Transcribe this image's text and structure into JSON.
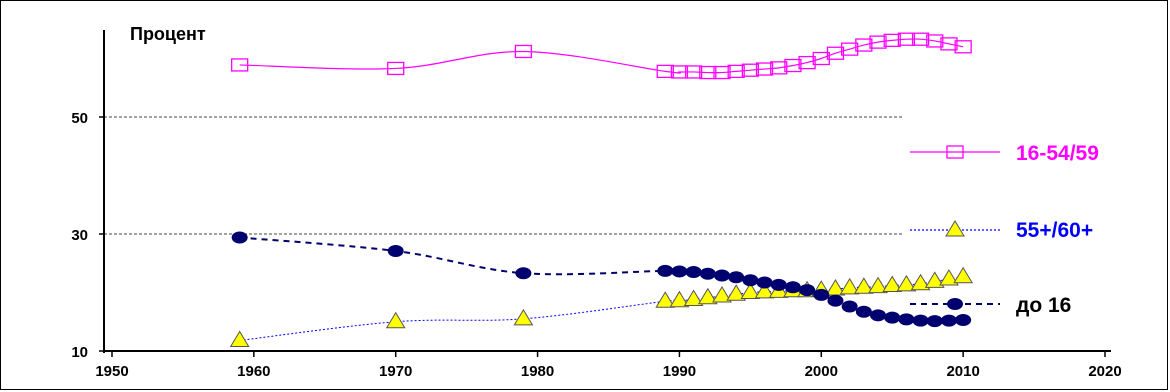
{
  "chart_data": {
    "type": "line",
    "title": "",
    "ylabel": "Процент",
    "xlabel": "",
    "xlim": [
      1950,
      2020
    ],
    "xticks": [
      1950,
      1960,
      1970,
      1980,
      1990,
      2000,
      2010,
      2020
    ],
    "yticks": [
      10,
      30,
      50
    ],
    "grid_y": [
      30,
      50
    ],
    "series": [
      {
        "name": "16-54/59",
        "color": "#ff00ff",
        "marker": "square-hollow",
        "line": "solid",
        "x": [
          1959,
          1970,
          1979,
          1989,
          1990,
          1991,
          1992,
          1993,
          1994,
          1995,
          1996,
          1997,
          1998,
          1999,
          2000,
          2001,
          2002,
          2003,
          2004,
          2005,
          2006,
          2007,
          2008,
          2009,
          2010
        ],
        "values": [
          58.9,
          58.3,
          61.2,
          57.8,
          57.7,
          57.7,
          57.6,
          57.6,
          57.8,
          58.0,
          58.2,
          58.4,
          58.8,
          59.3,
          60.0,
          60.9,
          61.6,
          62.3,
          62.8,
          63.1,
          63.3,
          63.3,
          63.0,
          62.5,
          62.0
        ]
      },
      {
        "name": "55+/60+",
        "color": "#0000ff",
        "marker": "triangle-yellow",
        "line": "dotted",
        "x": [
          1959,
          1970,
          1979,
          1989,
          1990,
          1991,
          1992,
          1993,
          1994,
          1995,
          1996,
          1997,
          1998,
          1999,
          2000,
          2001,
          2002,
          2003,
          2004,
          2005,
          2006,
          2007,
          2008,
          2009,
          2010
        ],
        "values": [
          11.8,
          15.0,
          15.5,
          18.5,
          18.6,
          18.8,
          19.1,
          19.4,
          19.7,
          20.0,
          20.1,
          20.2,
          20.3,
          20.3,
          20.4,
          20.6,
          20.8,
          20.9,
          21.0,
          21.2,
          21.3,
          21.5,
          21.9,
          22.3,
          22.7
        ]
      },
      {
        "name": "до 16",
        "color": "#00006e",
        "marker": "circle-filled",
        "line": "dashed",
        "x": [
          1959,
          1970,
          1979,
          1989,
          1990,
          1991,
          1992,
          1993,
          1994,
          1995,
          1996,
          1997,
          1998,
          1999,
          2000,
          2001,
          2002,
          2003,
          2004,
          2005,
          2006,
          2007,
          2008,
          2009,
          2010
        ],
        "values": [
          29.4,
          27.1,
          23.3,
          23.7,
          23.6,
          23.5,
          23.2,
          22.9,
          22.6,
          22.1,
          21.7,
          21.3,
          20.9,
          20.4,
          19.6,
          18.6,
          17.6,
          16.7,
          16.1,
          15.7,
          15.4,
          15.2,
          15.1,
          15.2,
          15.3
        ]
      }
    ],
    "legend": [
      {
        "label": "16-54/59",
        "color": "#ff00ff"
      },
      {
        "label": "55+/60+",
        "color": "#0000ff"
      },
      {
        "label": "до 16",
        "color": "#000000"
      }
    ]
  }
}
